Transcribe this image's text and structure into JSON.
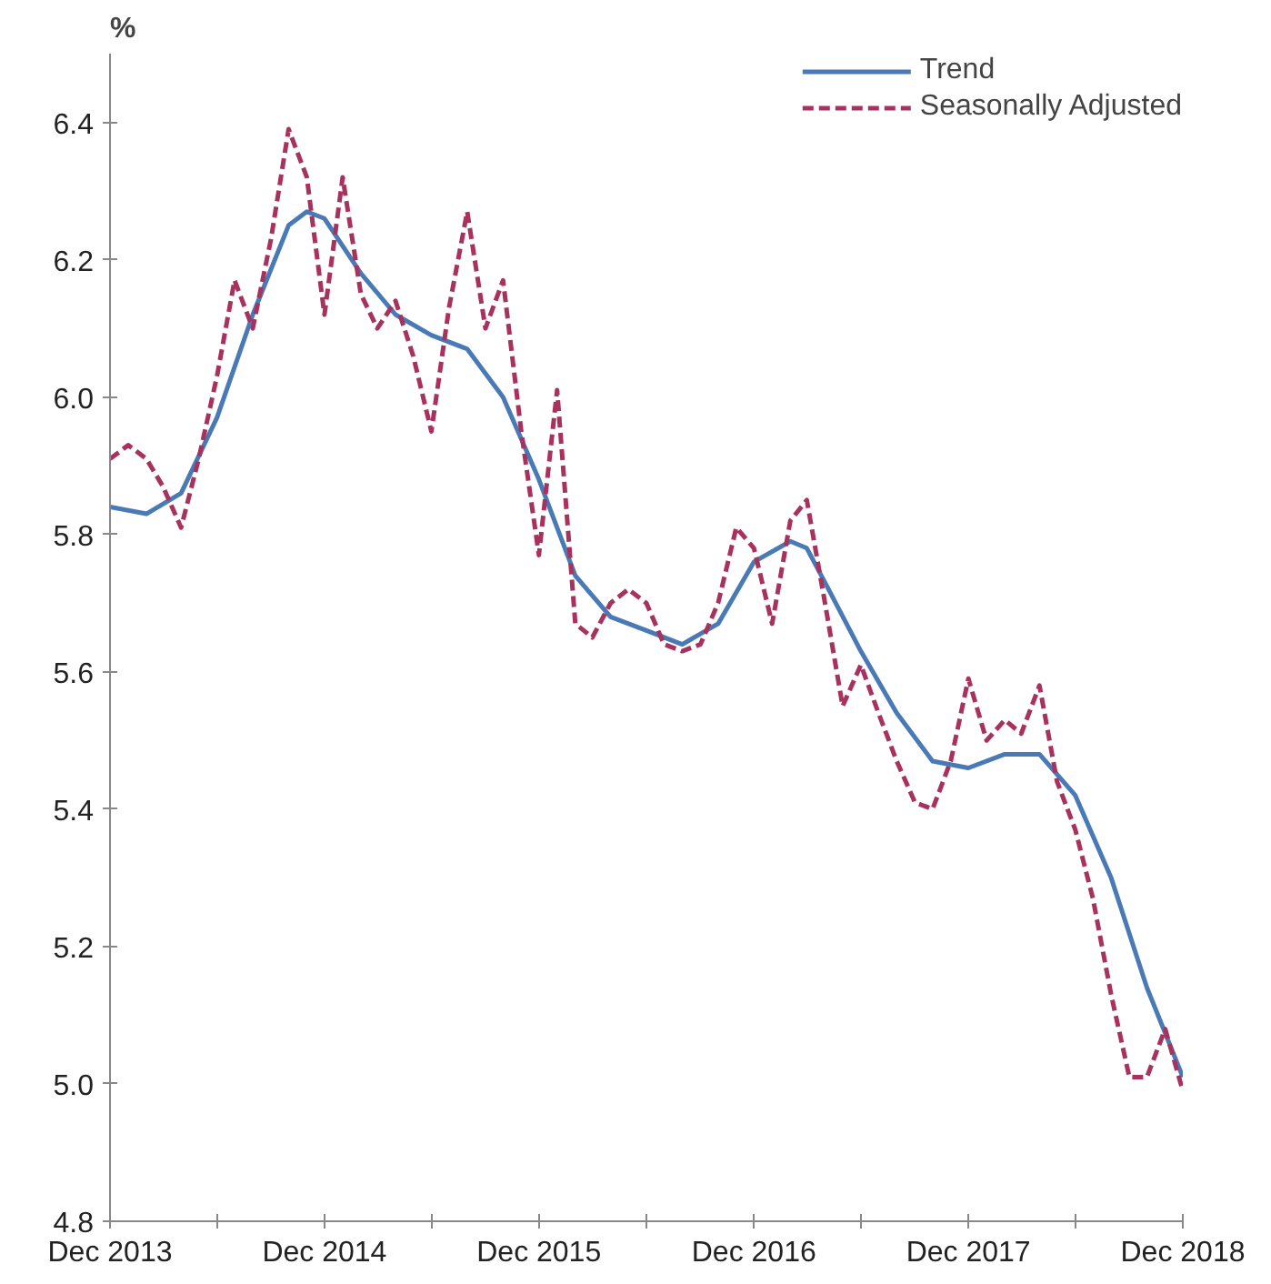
{
  "chart_data": {
    "type": "line",
    "ylabel": "%",
    "xlim": [
      "2013-12",
      "2018-12"
    ],
    "xticks": [
      {
        "value": "2013-12",
        "label": "Dec 2013"
      },
      {
        "value": "2014-06",
        "label": null
      },
      {
        "value": "2014-12",
        "label": "Dec 2014"
      },
      {
        "value": "2015-06",
        "label": null
      },
      {
        "value": "2015-12",
        "label": "Dec 2015"
      },
      {
        "value": "2016-06",
        "label": null
      },
      {
        "value": "2016-12",
        "label": "Dec 2016"
      },
      {
        "value": "2017-06",
        "label": null
      },
      {
        "value": "2017-12",
        "label": "Dec 2017"
      },
      {
        "value": "2018-06",
        "label": null
      },
      {
        "value": "2018-12",
        "label": "Dec 2018"
      }
    ],
    "ylim": [
      4.8,
      6.5
    ],
    "yticks": [
      4.8,
      {
        "value": 5,
        "label": "5.0"
      },
      5.2,
      5.4,
      5.6,
      5.8,
      {
        "value": 6,
        "label": "6.0"
      },
      6.2,
      6.4
    ],
    "grid": false,
    "legend": "top right",
    "series": [
      {
        "name": "Trend",
        "color": "#4a7ab5",
        "line_style": "solid",
        "x": [
          "2013-12",
          "2014-02",
          "2014-04",
          "2014-06",
          "2014-08",
          "2014-10",
          "2014-11",
          "2014-12",
          "2015-02",
          "2015-04",
          "2015-06",
          "2015-08",
          "2015-10",
          "2015-12",
          "2016-02",
          "2016-04",
          "2016-06",
          "2016-08",
          "2016-10",
          "2016-12",
          "2017-02",
          "2017-03",
          "2017-04",
          "2017-06",
          "2017-08",
          "2017-10",
          "2017-12",
          "2018-02",
          "2018-04",
          "2018-06",
          "2018-08",
          "2018-10",
          "2018-12"
        ],
        "values": [
          5.84,
          5.83,
          5.86,
          5.97,
          6.12,
          6.25,
          6.27,
          6.26,
          6.18,
          6.12,
          6.09,
          6.07,
          6.0,
          5.88,
          5.74,
          5.68,
          5.66,
          5.64,
          5.67,
          5.76,
          5.79,
          5.78,
          5.73,
          5.63,
          5.54,
          5.47,
          5.46,
          5.48,
          5.48,
          5.42,
          5.3,
          5.14,
          5.01
        ]
      },
      {
        "name": "Seasonally Adjusted",
        "color": "#a8325e",
        "line_style": "dashed",
        "x": [
          "2013-12",
          "2014-01",
          "2014-02",
          "2014-03",
          "2014-04",
          "2014-05",
          "2014-06",
          "2014-07",
          "2014-08",
          "2014-09",
          "2014-10",
          "2014-11",
          "2014-12",
          "2015-01",
          "2015-02",
          "2015-03",
          "2015-04",
          "2015-05",
          "2015-06",
          "2015-07",
          "2015-08",
          "2015-09",
          "2015-10",
          "2015-11",
          "2015-12",
          "2016-01",
          "2016-02",
          "2016-03",
          "2016-04",
          "2016-05",
          "2016-06",
          "2016-07",
          "2016-08",
          "2016-09",
          "2016-10",
          "2016-11",
          "2016-12",
          "2017-01",
          "2017-02",
          "2017-03",
          "2017-04",
          "2017-05",
          "2017-06",
          "2017-07",
          "2017-08",
          "2017-09",
          "2017-10",
          "2017-11",
          "2017-12",
          "2018-01",
          "2018-02",
          "2018-03",
          "2018-04",
          "2018-05",
          "2018-06",
          "2018-07",
          "2018-08",
          "2018-09",
          "2018-10",
          "2018-11",
          "2018-12"
        ],
        "values": [
          5.91,
          5.93,
          5.91,
          5.87,
          5.81,
          5.91,
          6.03,
          6.17,
          6.1,
          6.23,
          6.39,
          6.32,
          6.12,
          6.32,
          6.15,
          6.1,
          6.14,
          6.06,
          5.95,
          6.13,
          6.27,
          6.1,
          6.17,
          5.95,
          5.77,
          6.01,
          5.67,
          5.65,
          5.7,
          5.72,
          5.7,
          5.64,
          5.63,
          5.64,
          5.7,
          5.81,
          5.78,
          5.67,
          5.82,
          5.85,
          5.7,
          5.55,
          5.61,
          5.54,
          5.47,
          5.41,
          5.4,
          5.47,
          5.59,
          5.5,
          5.53,
          5.51,
          5.58,
          5.44,
          5.37,
          5.27,
          5.13,
          5.01,
          5.01,
          5.08,
          4.99
        ]
      }
    ]
  }
}
